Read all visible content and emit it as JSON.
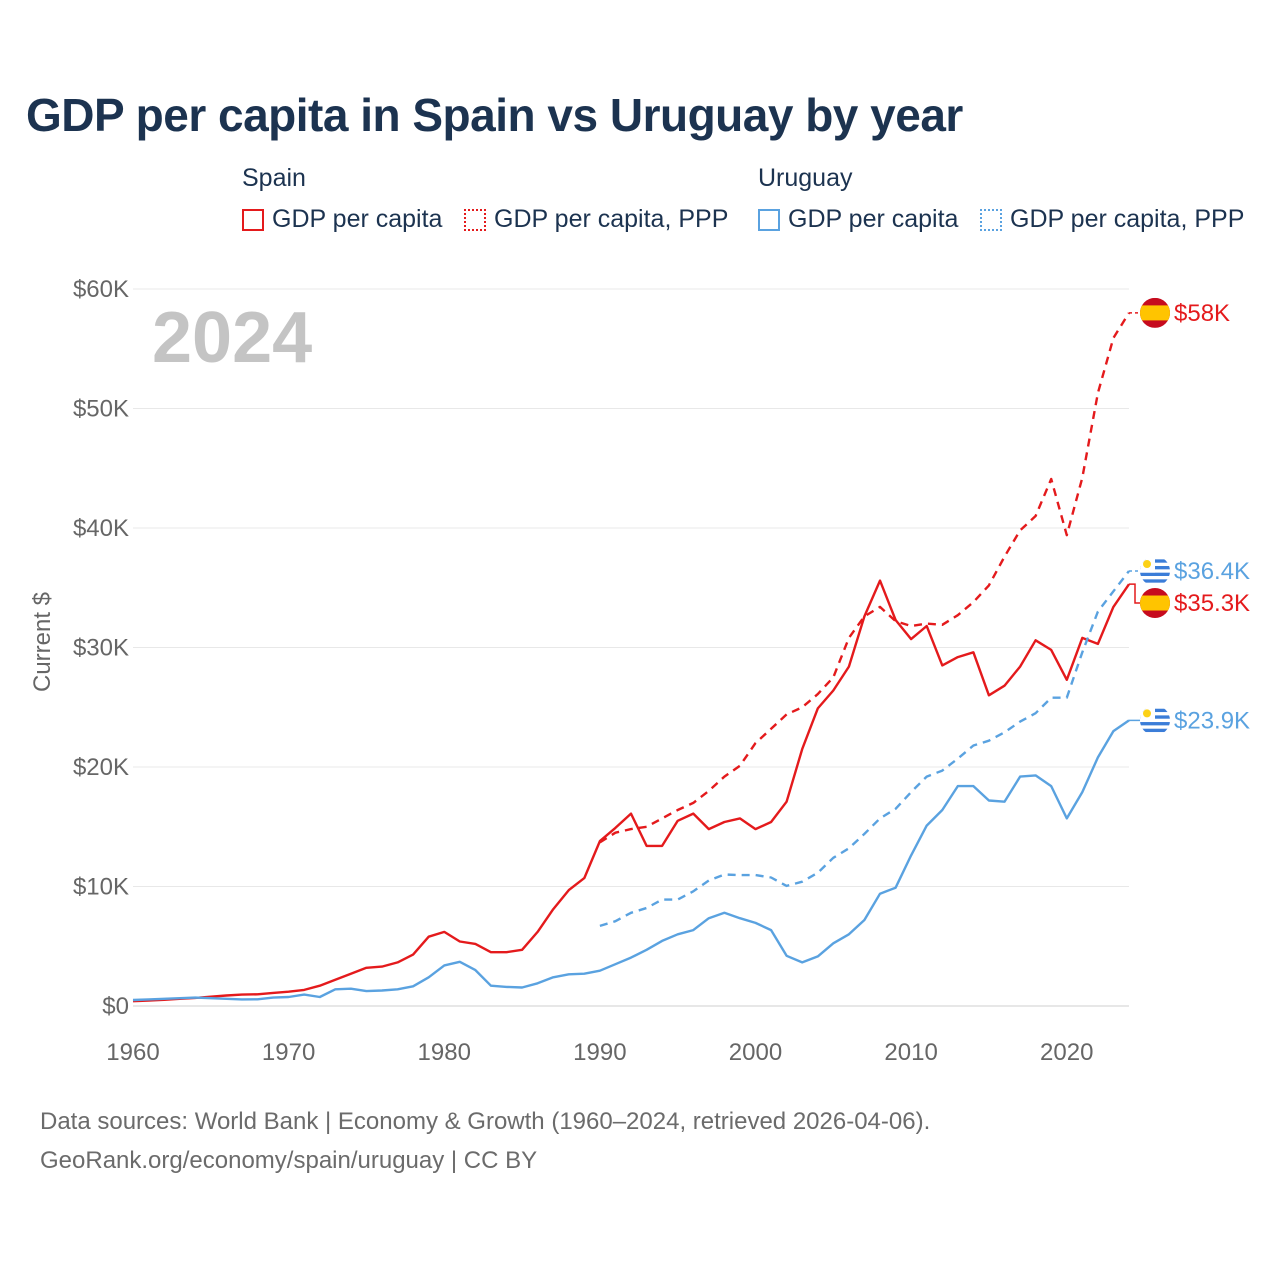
{
  "title": "GDP per capita in Spain vs Uruguay by year",
  "legend": {
    "groups": [
      {
        "name": "Spain",
        "items": [
          {
            "label": "GDP per capita",
            "color": "#e41a1c",
            "style": "solid"
          },
          {
            "label": "GDP per capita, PPP",
            "color": "#e41a1c",
            "style": "dotted"
          }
        ]
      },
      {
        "name": "Uruguay",
        "items": [
          {
            "label": "GDP per capita",
            "color": "#5aa2e0",
            "style": "solid"
          },
          {
            "label": "GDP per capita, PPP",
            "color": "#5aa2e0",
            "style": "dotted"
          }
        ]
      }
    ]
  },
  "footer": {
    "line1": "Data sources: World Bank | Economy & Growth (1960–2024, retrieved 2026-04-06).",
    "line2": "GeoRank.org/economy/spain/uruguay | CC BY"
  },
  "chart_data": {
    "type": "line",
    "year_label": "2024",
    "ylabel": "Current $",
    "xlim": [
      1960,
      2024
    ],
    "ylim": [
      0,
      60000
    ],
    "y_ticks": [
      0,
      10000,
      20000,
      30000,
      40000,
      50000,
      60000
    ],
    "y_tick_labels": [
      "$0",
      "$10K",
      "$20K",
      "$30K",
      "$40K",
      "$50K",
      "$60K"
    ],
    "x_ticks": [
      1960,
      1970,
      1980,
      1990,
      2000,
      2010,
      2020
    ],
    "x_tick_labels": [
      "1960",
      "1970",
      "1980",
      "1990",
      "2000",
      "2010",
      "2020"
    ],
    "series": [
      {
        "name": "Spain GDP per capita",
        "country": "spain",
        "color": "#e41a1c",
        "dashed": false,
        "end_label": "$35.3K",
        "start_year": 1960,
        "values": [
          400,
          450,
          520,
          600,
          680,
          780,
          880,
          950,
          980,
          1100,
          1200,
          1350,
          1700,
          2200,
          2700,
          3200,
          3300,
          3650,
          4300,
          5800,
          6200,
          5400,
          5200,
          4500,
          4500,
          4700,
          6200,
          8100,
          9700,
          10700,
          13800,
          14900,
          16100,
          13400,
          13400,
          15500,
          16100,
          14800,
          15400,
          15700,
          14800,
          15400,
          17100,
          21500,
          24900,
          26400,
          28400,
          32600,
          35600,
          32300,
          30700,
          31800,
          28500,
          29200,
          29600,
          26000,
          26800,
          28400,
          30600,
          29800,
          27300,
          30800,
          30300,
          33400,
          35300
        ]
      },
      {
        "name": "Spain GDP per capita, PPP",
        "country": "spain",
        "color": "#e41a1c",
        "dashed": true,
        "end_label": "$58K",
        "start_year": 1990,
        "values": [
          13700,
          14500,
          14800,
          15000,
          15700,
          16400,
          17000,
          18000,
          19200,
          20100,
          22000,
          23200,
          24400,
          25000,
          26100,
          27500,
          30800,
          32600,
          33400,
          32200,
          31800,
          32000,
          31900,
          32700,
          33800,
          35200,
          37600,
          39800,
          41000,
          44100,
          39400,
          44200,
          51300,
          55900,
          58000
        ]
      },
      {
        "name": "Uruguay GDP per capita",
        "country": "uruguay",
        "color": "#5aa2e0",
        "dashed": false,
        "end_label": "$23.9K",
        "start_year": 1960,
        "values": [
          500,
          550,
          600,
          650,
          700,
          650,
          600,
          550,
          560,
          700,
          750,
          950,
          750,
          1400,
          1450,
          1250,
          1300,
          1400,
          1650,
          2400,
          3400,
          3700,
          3000,
          1700,
          1600,
          1550,
          1900,
          2400,
          2650,
          2700,
          2950,
          3500,
          4050,
          4700,
          5450,
          6000,
          6350,
          7350,
          7800,
          7350,
          6950,
          6350,
          4200,
          3650,
          4150,
          5250,
          6000,
          7200,
          9400,
          9900,
          12600,
          15100,
          16400,
          18400,
          18400,
          17200,
          17100,
          19200,
          19300,
          18400,
          15700,
          17900,
          20800,
          23000,
          23900
        ]
      },
      {
        "name": "Uruguay GDP per capita, PPP",
        "country": "uruguay",
        "color": "#5aa2e0",
        "dashed": true,
        "end_label": "$36.4K",
        "start_year": 1990,
        "values": [
          6700,
          7100,
          7800,
          8200,
          8900,
          8900,
          9600,
          10500,
          11000,
          10950,
          10950,
          10750,
          10050,
          10400,
          11150,
          12400,
          13200,
          14400,
          15700,
          16500,
          17900,
          19200,
          19700,
          20700,
          21800,
          22200,
          22900,
          23800,
          24500,
          25800,
          25800,
          29600,
          33000,
          34700,
          36400
        ]
      }
    ]
  }
}
